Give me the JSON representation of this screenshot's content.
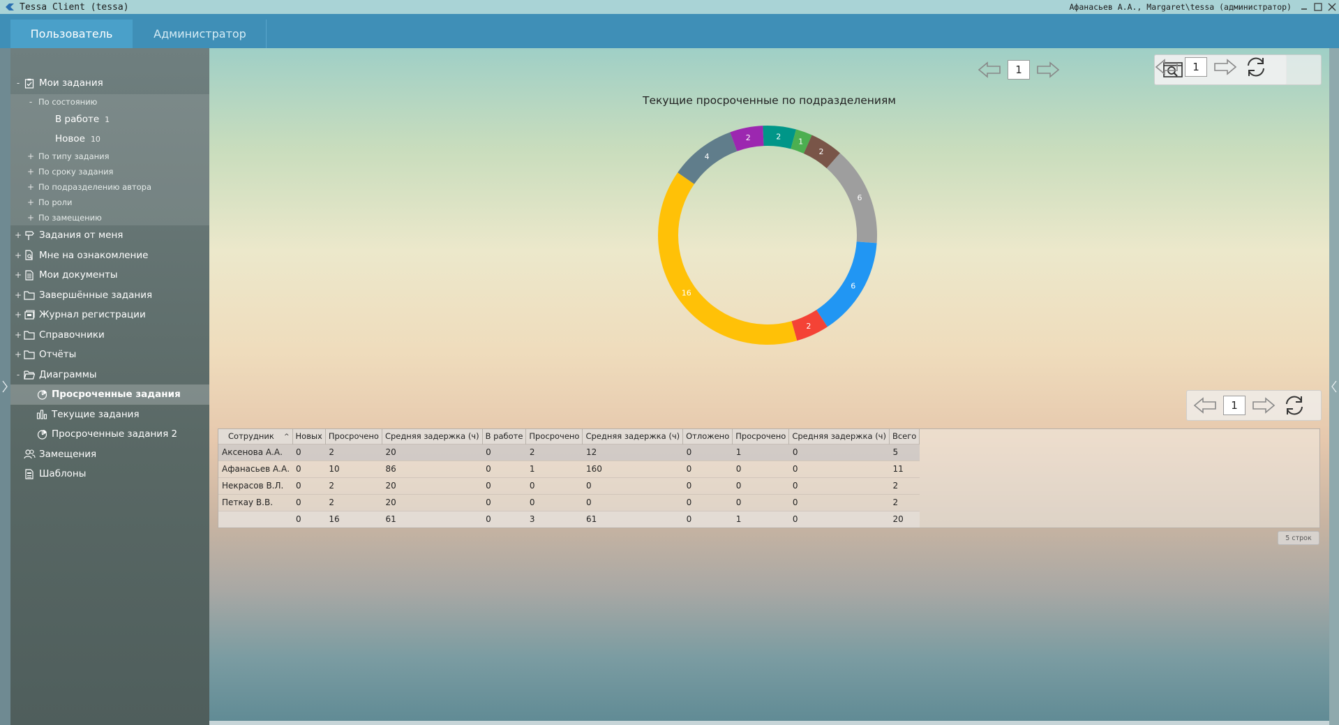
{
  "window": {
    "title": "Tessa Client (tessa)",
    "user": "Афанасьев А.А., Margaret\\tessa (администратор)"
  },
  "tabs": [
    {
      "label": "Пользователь",
      "active": true
    },
    {
      "label": "Администратор",
      "active": false
    }
  ],
  "sidebar": {
    "my_tasks": {
      "label": "Мои задания",
      "expander": "-",
      "icon": "clipboard-check-icon"
    },
    "by_state": {
      "label": "По состоянию",
      "expander": "-"
    },
    "in_work": {
      "label": "В работе",
      "count": "1"
    },
    "new": {
      "label": "Новое",
      "count": "10"
    },
    "by_type": {
      "label": "По типу задания",
      "expander": "+"
    },
    "by_term": {
      "label": "По сроку задания",
      "expander": "+"
    },
    "by_dept": {
      "label": "По подразделению автора",
      "expander": "+"
    },
    "by_role": {
      "label": "По роли",
      "expander": "+"
    },
    "by_deputy": {
      "label": "По замещению",
      "expander": "+"
    },
    "from_me": {
      "label": "Задания от меня",
      "expander": "+",
      "icon": "signpost-icon"
    },
    "for_review": {
      "label": "Мне на ознакомление",
      "expander": "+",
      "icon": "document-search-icon"
    },
    "my_docs": {
      "label": "Мои документы",
      "expander": "+",
      "icon": "document-icon"
    },
    "completed": {
      "label": "Завершённые задания",
      "expander": "+",
      "icon": "folder-icon"
    },
    "registry": {
      "label": "Журнал регистрации",
      "expander": "+",
      "icon": "registry-book-icon"
    },
    "references": {
      "label": "Справочники",
      "expander": "+",
      "icon": "folder-icon"
    },
    "reports": {
      "label": "Отчёты",
      "expander": "+",
      "icon": "folder-icon"
    },
    "charts": {
      "label": "Диаграммы",
      "expander": "-",
      "icon": "folder-open-icon"
    },
    "overdue": {
      "label": "Просроченные задания",
      "icon": "pie-chart-icon"
    },
    "current": {
      "label": "Текущие задания",
      "icon": "bar-chart-icon"
    },
    "overdue2": {
      "label": "Просроченные задания 2",
      "icon": "pie-chart-icon"
    },
    "deputies": {
      "label": "Замещения",
      "icon": "users-icon"
    },
    "templates": {
      "label": "Шаблоны",
      "icon": "template-icon"
    }
  },
  "toolbar_top": {
    "page": "1"
  },
  "toolbar_mid": {
    "page": "1"
  },
  "chart_data": {
    "type": "pie",
    "title": "Текущие просроченные по подразделениям",
    "donut": true,
    "slices": [
      {
        "value": 2,
        "color": "#9c27b0"
      },
      {
        "value": 2,
        "color": "#009688"
      },
      {
        "value": 1,
        "color": "#4caf50"
      },
      {
        "value": 2,
        "color": "#795548"
      },
      {
        "value": 6,
        "color": "#9e9e9e"
      },
      {
        "value": 6,
        "color": "#2196f3"
      },
      {
        "value": 2,
        "color": "#f44336"
      },
      {
        "value": 16,
        "color": "#ffc107"
      },
      {
        "value": 4,
        "color": "#607d8b"
      }
    ]
  },
  "grid": {
    "columns": [
      "Сотрудник",
      "Новых",
      "Просрочено",
      "Средняя задержка (ч)",
      "В работе",
      "Просрочено",
      "Средняя задержка (ч)",
      "Отложено",
      "Просрочено",
      "Средняя задержка (ч)",
      "Всего"
    ],
    "rows": [
      [
        "Аксенова А.А.",
        "0",
        "2",
        "20",
        "0",
        "2",
        "12",
        "0",
        "1",
        "0",
        "5"
      ],
      [
        "Афанасьев А.А.",
        "0",
        "10",
        "86",
        "0",
        "1",
        "160",
        "0",
        "0",
        "0",
        "11"
      ],
      [
        "Некрасов В.Л.",
        "0",
        "2",
        "20",
        "0",
        "0",
        "0",
        "0",
        "0",
        "0",
        "2"
      ],
      [
        "Петкау В.В.",
        "0",
        "2",
        "20",
        "0",
        "0",
        "0",
        "0",
        "0",
        "0",
        "2"
      ],
      [
        "",
        "0",
        "16",
        "61",
        "0",
        "3",
        "61",
        "0",
        "1",
        "0",
        "20"
      ]
    ],
    "rows_label": "5 строк"
  }
}
